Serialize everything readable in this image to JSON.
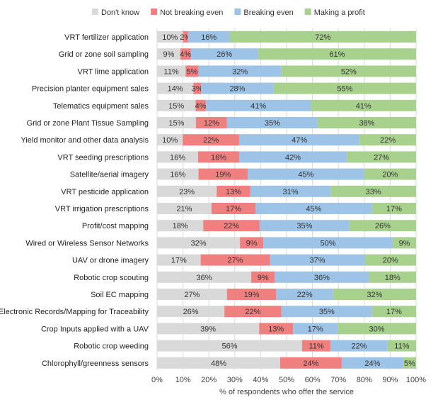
{
  "chart_data": {
    "type": "bar",
    "orientation": "horizontal",
    "stacked": true,
    "title": "",
    "xlabel": "% of respondents who offer the service",
    "ylabel": "",
    "xlim": [
      0,
      100
    ],
    "x_ticks": [
      "0%",
      "10%",
      "20%",
      "30%",
      "40%",
      "50%",
      "60%",
      "70%",
      "80%",
      "90%",
      "100%"
    ],
    "grid": "vertical",
    "legend_position": "top",
    "categories": [
      "VRT fertilizer application",
      "Grid or zone soil sampling",
      "VRT lime application",
      "Precision planter equipment sales",
      "Telematics equipment sales",
      "Grid or zone Plant Tissue Sampling",
      "Yield monitor and other data analysis",
      "VRT seeding prescriptions",
      "Satellite/aerial imagery",
      "VRT pesticide application",
      "VRT irrigation prescriptions",
      "Profit/cost mapping",
      "Wired or Wireless Sensor Networks",
      "UAV or drone imagery",
      "Robotic crop scouting",
      "Soil EC mapping",
      "Electronic Records/Mapping for Traceability",
      "Crop Inputs applied with a UAV",
      "Robotic crop weeding",
      "Chlorophyll/greenness sensors"
    ],
    "series": [
      {
        "name": "Don't know",
        "color": "#d9d9d9",
        "values": [
          10,
          9,
          11,
          14,
          15,
          15,
          10,
          16,
          16,
          23,
          21,
          18,
          32,
          17,
          36,
          27,
          26,
          39,
          56,
          48
        ]
      },
      {
        "name": "Not breaking even",
        "color": "#f08080",
        "values": [
          2,
          4,
          5,
          3,
          4,
          12,
          22,
          16,
          19,
          13,
          17,
          22,
          9,
          27,
          9,
          19,
          22,
          13,
          11,
          24
        ]
      },
      {
        "name": "Breaking even",
        "color": "#9dc3e6",
        "values": [
          16,
          26,
          32,
          28,
          41,
          35,
          47,
          42,
          45,
          31,
          45,
          35,
          50,
          37,
          36,
          22,
          35,
          17,
          22,
          24
        ]
      },
      {
        "name": "Making a profit",
        "color": "#a9d18e",
        "values": [
          72,
          61,
          52,
          55,
          41,
          38,
          22,
          27,
          20,
          33,
          17,
          26,
          9,
          20,
          18,
          32,
          17,
          30,
          11,
          5
        ]
      }
    ]
  }
}
